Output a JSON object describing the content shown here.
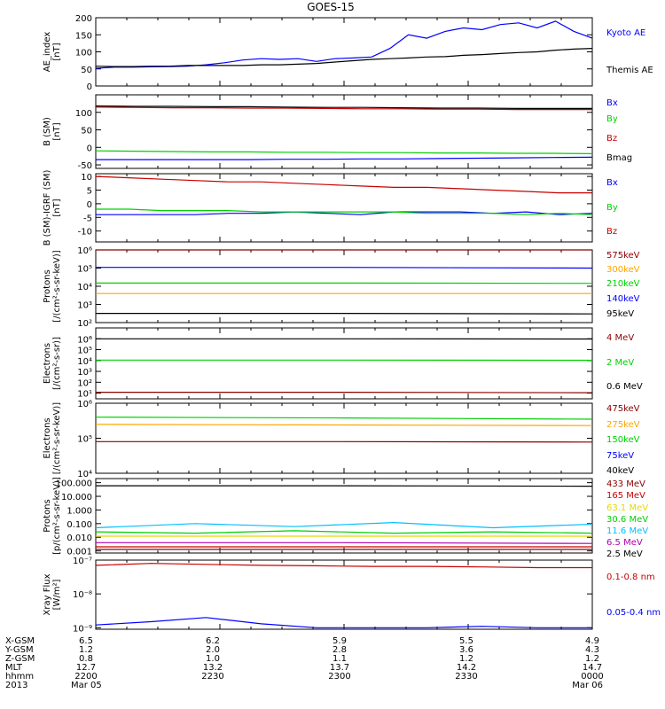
{
  "title": "GOES-15",
  "colors": {
    "black": "#000000",
    "blue": "#0000ff",
    "green": "#00d000",
    "red": "#c80000",
    "orange": "#ffa500",
    "navy": "#1a3fd0",
    "cyan": "#00bfff",
    "yellow": "#e8d800",
    "maroon": "#8b0000",
    "purple": "#b000b0"
  },
  "chart_data": [
    {
      "type": "line",
      "ylabel": [
        "AE_index",
        "[nT]"
      ],
      "scale": "linear",
      "ylim": [
        0,
        200
      ],
      "yticks": [
        {
          "v": 0,
          "l": "0"
        },
        {
          "v": 50,
          "l": "50"
        },
        {
          "v": 100,
          "l": "100"
        },
        {
          "v": 150,
          "l": "150"
        },
        {
          "v": 200,
          "l": "200"
        }
      ],
      "series": [
        {
          "name": "Kyoto AE",
          "color": "#0000ff",
          "values": [
            52,
            55,
            55,
            56,
            57,
            58,
            62,
            68,
            76,
            80,
            78,
            80,
            72,
            80,
            82,
            85,
            110,
            150,
            140,
            160,
            170,
            165,
            180,
            185,
            170,
            190,
            160,
            140
          ]
        },
        {
          "name": "Themis AE",
          "color": "#000000",
          "values": [
            58,
            57,
            57,
            58,
            58,
            60,
            60,
            60,
            60,
            62,
            62,
            64,
            66,
            70,
            74,
            78,
            80,
            82,
            85,
            86,
            90,
            92,
            95,
            98,
            100,
            105,
            108,
            110
          ]
        }
      ]
    },
    {
      "type": "line",
      "ylabel": [
        "B (SM)",
        "[nT]"
      ],
      "scale": "linear",
      "ylim": [
        -60,
        150
      ],
      "yticks": [
        {
          "v": -50,
          "l": "-50"
        },
        {
          "v": 0,
          "l": "0"
        },
        {
          "v": 50,
          "l": "50"
        },
        {
          "v": 100,
          "l": "100"
        }
      ],
      "series": [
        {
          "name": "Bx",
          "color": "#0000ff",
          "values": [
            -35,
            -35,
            -35,
            -35,
            -35,
            -34,
            -34,
            -33,
            -33,
            -32,
            -31,
            -30,
            -29,
            -28
          ]
        },
        {
          "name": "By",
          "color": "#00d000",
          "values": [
            -10,
            -11,
            -12,
            -13,
            -13,
            -14,
            -14,
            -15,
            -15,
            -16,
            -16,
            -17,
            -17,
            -18
          ]
        },
        {
          "name": "Bz",
          "color": "#c80000",
          "values": [
            115,
            114,
            113,
            113,
            112,
            112,
            111,
            110,
            110,
            109,
            109,
            108,
            108,
            108
          ]
        },
        {
          "name": "Bmag",
          "color": "#000000",
          "values": [
            118,
            117,
            117,
            116,
            116,
            115,
            114,
            114,
            113,
            112,
            112,
            111,
            111,
            111
          ]
        }
      ]
    },
    {
      "type": "line",
      "ylabel": [
        "B (SM)-IGRF (SM)",
        "[nT]"
      ],
      "scale": "linear",
      "ylim": [
        -14,
        11
      ],
      "yticks": [
        {
          "v": -10,
          "l": "-10"
        },
        {
          "v": -5,
          "l": "-5"
        },
        {
          "v": 0,
          "l": "0"
        },
        {
          "v": 5,
          "l": "5"
        },
        {
          "v": 10,
          "l": "10"
        }
      ],
      "series": [
        {
          "name": "Bx",
          "color": "#0000ff",
          "values": [
            -4,
            -4,
            -4,
            -4,
            -3.5,
            -3.5,
            -3,
            -3.5,
            -4,
            -3,
            -3,
            -3,
            -3.5,
            -3,
            -4,
            -3.5
          ]
        },
        {
          "name": "By",
          "color": "#00d000",
          "values": [
            -2,
            -2,
            -2.5,
            -2.5,
            -2.5,
            -3,
            -3,
            -3,
            -3,
            -3,
            -3.5,
            -3.5,
            -3.5,
            -4,
            -3.5,
            -4
          ]
        },
        {
          "name": "Bz",
          "color": "#c80000",
          "values": [
            10,
            9.5,
            9,
            8.5,
            8,
            8,
            7.5,
            7,
            6.5,
            6,
            6,
            5.5,
            5,
            4.5,
            4,
            4
          ]
        }
      ]
    },
    {
      "type": "line",
      "ylabel": [
        "Protons",
        "[/(cm²-s-sr-keV)]"
      ],
      "scale": "log",
      "ylim": [
        100.0,
        1000000.0
      ],
      "yticks": [
        {
          "v": 100,
          "l": "10²"
        },
        {
          "v": 1000,
          "l": "10³"
        },
        {
          "v": 10000,
          "l": "10⁴"
        },
        {
          "v": 100000,
          "l": "10⁵"
        },
        {
          "v": 1000000,
          "l": "10⁶"
        }
      ],
      "series": [
        {
          "name": "575keV",
          "color": "#8b0000",
          "values": [
            1000000,
            1000000,
            1000000
          ]
        },
        {
          "name": "300keV",
          "color": "#ffa500",
          "values": [
            4000,
            4000,
            4000
          ]
        },
        {
          "name": "210keV",
          "color": "#00d000",
          "values": [
            15000,
            15000,
            14500
          ]
        },
        {
          "name": "140keV",
          "color": "#0000ff",
          "values": [
            110000,
            110000,
            100000
          ]
        },
        {
          "name": "95keV",
          "color": "#000000",
          "values": [
            320,
            320,
            300
          ]
        }
      ]
    },
    {
      "type": "line",
      "ylabel": [
        "Electrons",
        "[/(cm²-s-sr)]"
      ],
      "scale": "log",
      "ylim": [
        3,
        10000000.0
      ],
      "yticks": [
        {
          "v": 10,
          "l": "10¹"
        },
        {
          "v": 100,
          "l": "10²"
        },
        {
          "v": 1000,
          "l": "10³"
        },
        {
          "v": 10000,
          "l": "10⁴"
        },
        {
          "v": 100000,
          "l": "10⁵"
        },
        {
          "v": 1000000,
          "l": "10⁶"
        }
      ],
      "series": [
        {
          "name": "4 MeV",
          "color": "#8b0000",
          "values": [
            12,
            12,
            11
          ]
        },
        {
          "name": "2 MeV",
          "color": "#00d000",
          "values": [
            11000,
            11000,
            10500
          ]
        },
        {
          "name": "0.6 MeV",
          "color": "#000000",
          "values": [
            1000000,
            1000000,
            950000
          ]
        }
      ]
    },
    {
      "type": "line",
      "ylabel": [
        "Electrons",
        "[/(cm²-s-sr-keV)]"
      ],
      "scale": "log",
      "ylim": [
        10000.0,
        1000000.0
      ],
      "yticks": [
        {
          "v": 10000,
          "l": "10⁴"
        },
        {
          "v": 100000,
          "l": "10⁵"
        },
        {
          "v": 1000000,
          "l": "10⁶"
        }
      ],
      "series": [
        {
          "name": "475keV",
          "color": "#8b0000",
          "values": [
            80000,
            80000,
            78000
          ]
        },
        {
          "name": "275keV",
          "color": "#ffa500",
          "values": [
            250000,
            240000,
            230000
          ]
        },
        {
          "name": "150keV",
          "color": "#00d000",
          "values": [
            400000,
            380000,
            350000
          ]
        },
        {
          "name": "75keV",
          "color": "#0000ff",
          "values": []
        },
        {
          "name": "40keV",
          "color": "#000000",
          "values": []
        }
      ]
    },
    {
      "type": "line",
      "ylabel": [
        "Protons",
        "[p/(cm²-s-sr-keV)]"
      ],
      "scale": "log",
      "ylim": [
        0.0007,
        200
      ],
      "yticks": [
        {
          "v": 0.001,
          "l": "0.001"
        },
        {
          "v": 0.01,
          "l": "0.010"
        },
        {
          "v": 0.1,
          "l": "0.100"
        },
        {
          "v": 1,
          "l": "1.000"
        },
        {
          "v": 10,
          "l": "10.000"
        },
        {
          "v": 100,
          "l": "100.000"
        }
      ],
      "series": [
        {
          "name": "433 MeV",
          "color": "#8b0000",
          "values": [
            0.0013,
            0.0013,
            0.0013
          ]
        },
        {
          "name": "165 MeV",
          "color": "#c80000",
          "values": [
            0.002,
            0.002,
            0.002
          ]
        },
        {
          "name": "63.1 MeV",
          "color": "#e8d800",
          "values": [
            0.012,
            0.012,
            0.012
          ]
        },
        {
          "name": "30.6 MeV",
          "color": "#00d000",
          "values": [
            0.025,
            0.02,
            0.03,
            0.02,
            0.025,
            0.02
          ]
        },
        {
          "name": "11.6 MeV",
          "color": "#00bfff",
          "values": [
            0.05,
            0.1,
            0.06,
            0.12,
            0.05,
            0.09
          ]
        },
        {
          "name": "6.5 MeV",
          "color": "#b000b0",
          "values": [
            0.004,
            0.004,
            0.0035
          ]
        },
        {
          "name": "2.5 MeV",
          "color": "#000000",
          "values": [
            60,
            60,
            55
          ]
        }
      ]
    },
    {
      "type": "line",
      "ylabel": [
        "Xray Flux",
        "[W/m²]"
      ],
      "scale": "log",
      "ylim": [
        9e-10,
        1e-07
      ],
      "yticks": [
        {
          "v": 1e-09,
          "l": "10⁻⁹"
        },
        {
          "v": 1e-08,
          "l": "10⁻⁸"
        },
        {
          "v": 1e-07,
          "l": "10⁻⁷"
        }
      ],
      "series": [
        {
          "name": "0.1-0.8 nm",
          "color": "#c80000",
          "values": [
            7e-08,
            8e-08,
            7.5e-08,
            7e-08,
            6.8e-08,
            6.5e-08,
            6.5e-08,
            6.3e-08,
            6e-08,
            6e-08
          ]
        },
        {
          "name": "0.05-0.4 nm",
          "color": "#0000ff",
          "values": [
            1.2e-09,
            1.5e-09,
            2e-09,
            1.3e-09,
            1e-09,
            1e-09,
            1e-09,
            1.1e-09,
            1e-09,
            1e-09
          ]
        }
      ]
    }
  ],
  "x_axis": {
    "row_labels": [
      "X-GSM",
      "Y-GSM",
      "Z-GSM",
      "MLT",
      "hhmm",
      "2013"
    ],
    "columns": [
      [
        "6.5",
        "1.2",
        "0.8",
        "12.7",
        "2200",
        "Mar 05"
      ],
      [
        "6.2",
        "2.0",
        "1.0",
        "13.2",
        "2230",
        ""
      ],
      [
        "5.9",
        "2.8",
        "1.1",
        "13.7",
        "2300",
        ""
      ],
      [
        "5.5",
        "3.6",
        "1.2",
        "14.2",
        "2330",
        ""
      ],
      [
        "4.9",
        "4.3",
        "1.2",
        "14.7",
        "0000",
        "Mar 06"
      ]
    ]
  }
}
